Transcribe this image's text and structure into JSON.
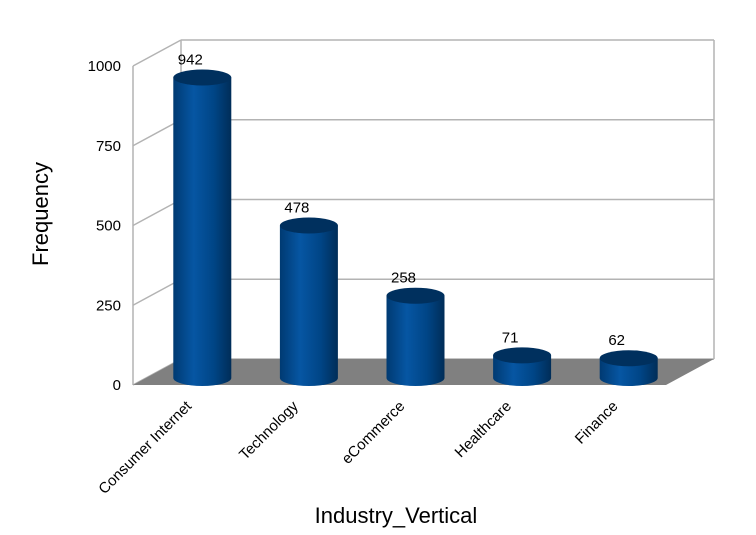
{
  "chart_data": {
    "type": "bar",
    "style": "3d-cylinder",
    "categories": [
      "Consumer Internet",
      "Technology",
      "eCommerce",
      "Healthcare",
      "Finance"
    ],
    "values": [
      942,
      478,
      258,
      71,
      62
    ],
    "data_labels": [
      "942",
      "478",
      "258",
      "71",
      "62"
    ],
    "xlabel": "Industry_Vertical",
    "ylabel": "Frequency",
    "ylim": [
      0,
      1000
    ],
    "yticks": [
      0,
      250,
      500,
      750,
      1000
    ],
    "ytick_labels": [
      "0",
      "250",
      "500",
      "750",
      "1000"
    ],
    "grid": true,
    "legend": "none",
    "colors": {
      "bar": "#004586",
      "bar_top": "#00305e",
      "floor": "#808080",
      "grid": "#b3b3b3"
    }
  }
}
